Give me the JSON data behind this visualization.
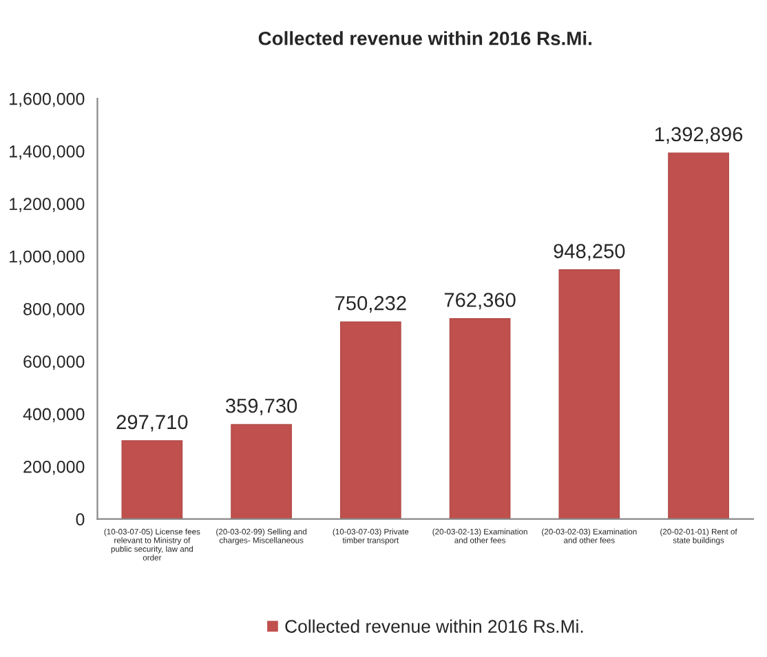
{
  "chart_data": {
    "type": "bar",
    "title": "Collected revenue within 2016 Rs.Mi.",
    "categories": [
      "(10-03-07-05) License fees relevant to Ministry of public security, law and order",
      "(20-03-02-99) Selling and charges- Miscellaneous",
      "(10-03-07-03) Private timber transport",
      "(20-03-02-13) Examination and other fees",
      "(20-03-02-03) Examination and other fees",
      "(20-02-01-01) Rent of state buildings"
    ],
    "series": [
      {
        "name": "Collected revenue within 2016 Rs.Mi.",
        "color": "#c0504d",
        "values": [
          297710,
          359730,
          750232,
          762360,
          948250,
          1392896
        ]
      }
    ],
    "ylim": [
      0,
      1600000
    ],
    "yticks": [
      {
        "value": 0,
        "label": "0"
      },
      {
        "value": 200000,
        "label": "200,000"
      },
      {
        "value": 400000,
        "label": "400,000"
      },
      {
        "value": 600000,
        "label": "600,000"
      },
      {
        "value": 800000,
        "label": "800,000"
      },
      {
        "value": 1000000,
        "label": "1,000,000"
      },
      {
        "value": 1200000,
        "label": "1,200,000"
      },
      {
        "value": 1400000,
        "label": "1,400,000"
      },
      {
        "value": 1600000,
        "label": "1,600,000"
      }
    ],
    "value_labels": [
      "297,710",
      "359,730",
      "750,232",
      "762,360",
      "948,250",
      "1,392,896"
    ],
    "grid": false,
    "legend": "bottom"
  }
}
